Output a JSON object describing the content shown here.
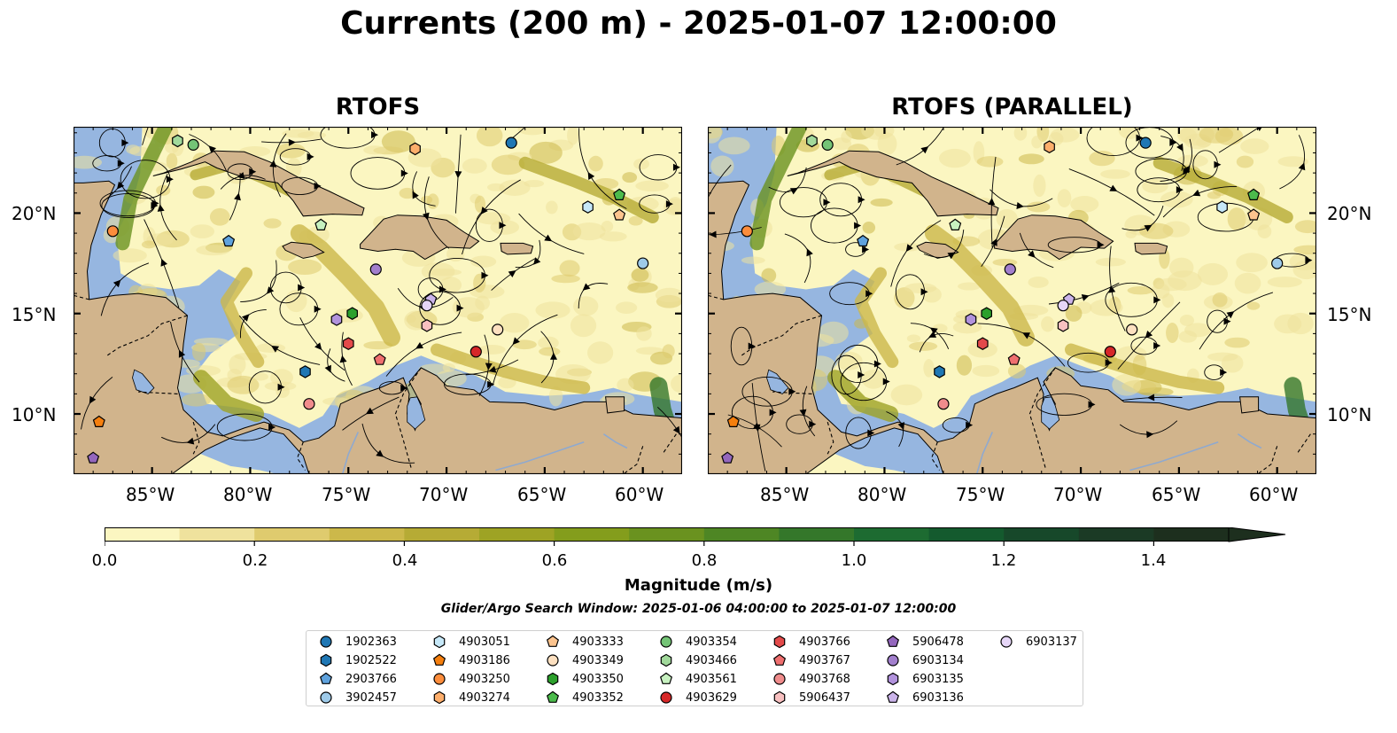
{
  "title": "Currents (200 m) - 2025-01-07 12:00:00",
  "panels": [
    {
      "title": "RTOFS"
    },
    {
      "title": "RTOFS (PARALLEL)"
    }
  ],
  "map": {
    "lon_range": [
      -89,
      -58
    ],
    "lat_range": [
      7,
      24.3
    ],
    "lon_ticks": [
      "85°W",
      "80°W",
      "75°W",
      "70°W",
      "65°W",
      "60°W"
    ],
    "lat_ticks": [
      "20°N",
      "15°N",
      "10°N"
    ],
    "colors": {
      "ocean": "#96b6e0",
      "land": "#d1b48c",
      "current_low": "#fbf4bf",
      "current_high": "#1b2e1c"
    }
  },
  "colorbar": {
    "label": "Magnitude (m/s)",
    "ticks": [
      "0.0",
      "0.2",
      "0.4",
      "0.6",
      "0.8",
      "1.0",
      "1.2",
      "1.4"
    ],
    "range": [
      0,
      1.5
    ],
    "extend": "max",
    "colors": [
      "#fbf6c1",
      "#efe29d",
      "#dfcb6e",
      "#ccb84a",
      "#b6ab35",
      "#9ea324",
      "#849d1c",
      "#6a921f",
      "#4e8624",
      "#34772a",
      "#1d6b31",
      "#145a2e",
      "#17482a",
      "#1b3a25",
      "#1d2f1e"
    ]
  },
  "search_window": "Glider/Argo Search Window: 2025-01-06 04:00:00 to 2025-01-07 12:00:00",
  "legend": [
    {
      "id": "1902363",
      "color": "#1f77b4",
      "marker": "circle"
    },
    {
      "id": "1902522",
      "color": "#1f77b4",
      "marker": "hexagon"
    },
    {
      "id": "2903766",
      "color": "#5fa2dd",
      "marker": "pentagon"
    },
    {
      "id": "3902457",
      "color": "#9ecae9",
      "marker": "circle"
    },
    {
      "id": "4903051",
      "color": "#c6e8f8",
      "marker": "hexagon"
    },
    {
      "id": "4903186",
      "color": "#f57f0e",
      "marker": "pentagon"
    },
    {
      "id": "4903250",
      "color": "#fd8d3c",
      "marker": "circle"
    },
    {
      "id": "4903274",
      "color": "#fdae6b",
      "marker": "hexagon"
    },
    {
      "id": "4903333",
      "color": "#fdc48e",
      "marker": "pentagon"
    },
    {
      "id": "4903349",
      "color": "#fde0c0",
      "marker": "circle"
    },
    {
      "id": "4903350",
      "color": "#2ca02c",
      "marker": "hexagon"
    },
    {
      "id": "4903352",
      "color": "#4cbb4c",
      "marker": "pentagon"
    },
    {
      "id": "4903354",
      "color": "#74c476",
      "marker": "circle"
    },
    {
      "id": "4903466",
      "color": "#a1d99b",
      "marker": "hexagon"
    },
    {
      "id": "4903561",
      "color": "#c7f1c0",
      "marker": "pentagon"
    },
    {
      "id": "4903629",
      "color": "#d62728",
      "marker": "circle"
    },
    {
      "id": "4903766",
      "color": "#e34a4a",
      "marker": "hexagon"
    },
    {
      "id": "4903767",
      "color": "#ef6f6f",
      "marker": "pentagon"
    },
    {
      "id": "4903768",
      "color": "#f08c8c",
      "marker": "circle"
    },
    {
      "id": "5906437",
      "color": "#f8c0c0",
      "marker": "hexagon"
    },
    {
      "id": "5906478",
      "color": "#9467bd",
      "marker": "pentagon"
    },
    {
      "id": "6903134",
      "color": "#a27fcd",
      "marker": "circle"
    },
    {
      "id": "6903135",
      "color": "#b192dc",
      "marker": "hexagon"
    },
    {
      "id": "6903136",
      "color": "#cbb4ea",
      "marker": "pentagon"
    },
    {
      "id": "6903137",
      "color": "#e6d6f7",
      "marker": "circle"
    }
  ],
  "floats": [
    {
      "id": "1902363",
      "lon": -66.7,
      "lat": 23.5,
      "lon2": -66.7,
      "lat2": 23.5
    },
    {
      "id": "1902522",
      "lon": -77.2,
      "lat": 12.1,
      "lon2": -77.2,
      "lat2": 12.1
    },
    {
      "id": "2903766",
      "lon": -81.1,
      "lat": 18.6,
      "lon2": -81.1,
      "lat2": 18.6
    },
    {
      "id": "3902457",
      "lon": -60.0,
      "lat": 17.5,
      "lon2": -60.0,
      "lat2": 17.5
    },
    {
      "id": "4903051",
      "lon": -62.8,
      "lat": 20.3,
      "lon2": -62.8,
      "lat2": 20.3
    },
    {
      "id": "4903186",
      "lon": -87.7,
      "lat": 9.6,
      "lon2": -87.7,
      "lat2": 9.6
    },
    {
      "id": "4903250",
      "lon": -87.0,
      "lat": 19.1,
      "lon2": -87.0,
      "lat2": 19.1
    },
    {
      "id": "4903274",
      "lon": -71.6,
      "lat": 23.2,
      "lon2": -71.6,
      "lat2": 23.3
    },
    {
      "id": "4903333",
      "lon": -61.2,
      "lat": 19.9,
      "lon2": -61.2,
      "lat2": 19.9
    },
    {
      "id": "4903349",
      "lon": -67.4,
      "lat": 14.2,
      "lon2": -67.4,
      "lat2": 14.2
    },
    {
      "id": "4903350",
      "lon": -74.8,
      "lat": 15.0,
      "lon2": -74.8,
      "lat2": 15.0
    },
    {
      "id": "4903352",
      "lon": -61.2,
      "lat": 20.9,
      "lon2": -61.2,
      "lat2": 20.9
    },
    {
      "id": "4903354",
      "lon": -82.9,
      "lat": 23.4,
      "lon2": -82.9,
      "lat2": 23.4
    },
    {
      "id": "4903466",
      "lon": -83.7,
      "lat": 23.6,
      "lon2": -83.7,
      "lat2": 23.6
    },
    {
      "id": "4903561",
      "lon": -76.4,
      "lat": 19.4,
      "lon2": -76.4,
      "lat2": 19.4
    },
    {
      "id": "4903629",
      "lon": -68.5,
      "lat": 13.1,
      "lon2": -68.5,
      "lat2": 13.1
    },
    {
      "id": "4903766",
      "lon": -75.0,
      "lat": 13.5,
      "lon2": -75.0,
      "lat2": 13.5
    },
    {
      "id": "4903767",
      "lon": -73.4,
      "lat": 12.7,
      "lon2": -73.4,
      "lat2": 12.7
    },
    {
      "id": "4903768",
      "lon": -77.0,
      "lat": 10.5,
      "lon2": -77.0,
      "lat2": 10.5
    },
    {
      "id": "5906437",
      "lon": -71.0,
      "lat": 14.4,
      "lon2": -70.9,
      "lat2": 14.4
    },
    {
      "id": "5906478",
      "lon": -88.0,
      "lat": 7.8,
      "lon2": -88.0,
      "lat2": 7.8
    },
    {
      "id": "6903134",
      "lon": -73.6,
      "lat": 17.2,
      "lon2": -73.6,
      "lat2": 17.2
    },
    {
      "id": "6903135",
      "lon": -75.6,
      "lat": 14.7,
      "lon2": -75.6,
      "lat2": 14.7
    },
    {
      "id": "6903136",
      "lon": -70.8,
      "lat": 15.7,
      "lon2": -70.6,
      "lat2": 15.7
    },
    {
      "id": "6903137",
      "lon": -71.0,
      "lat": 15.4,
      "lon2": -70.9,
      "lat2": 15.4
    }
  ]
}
